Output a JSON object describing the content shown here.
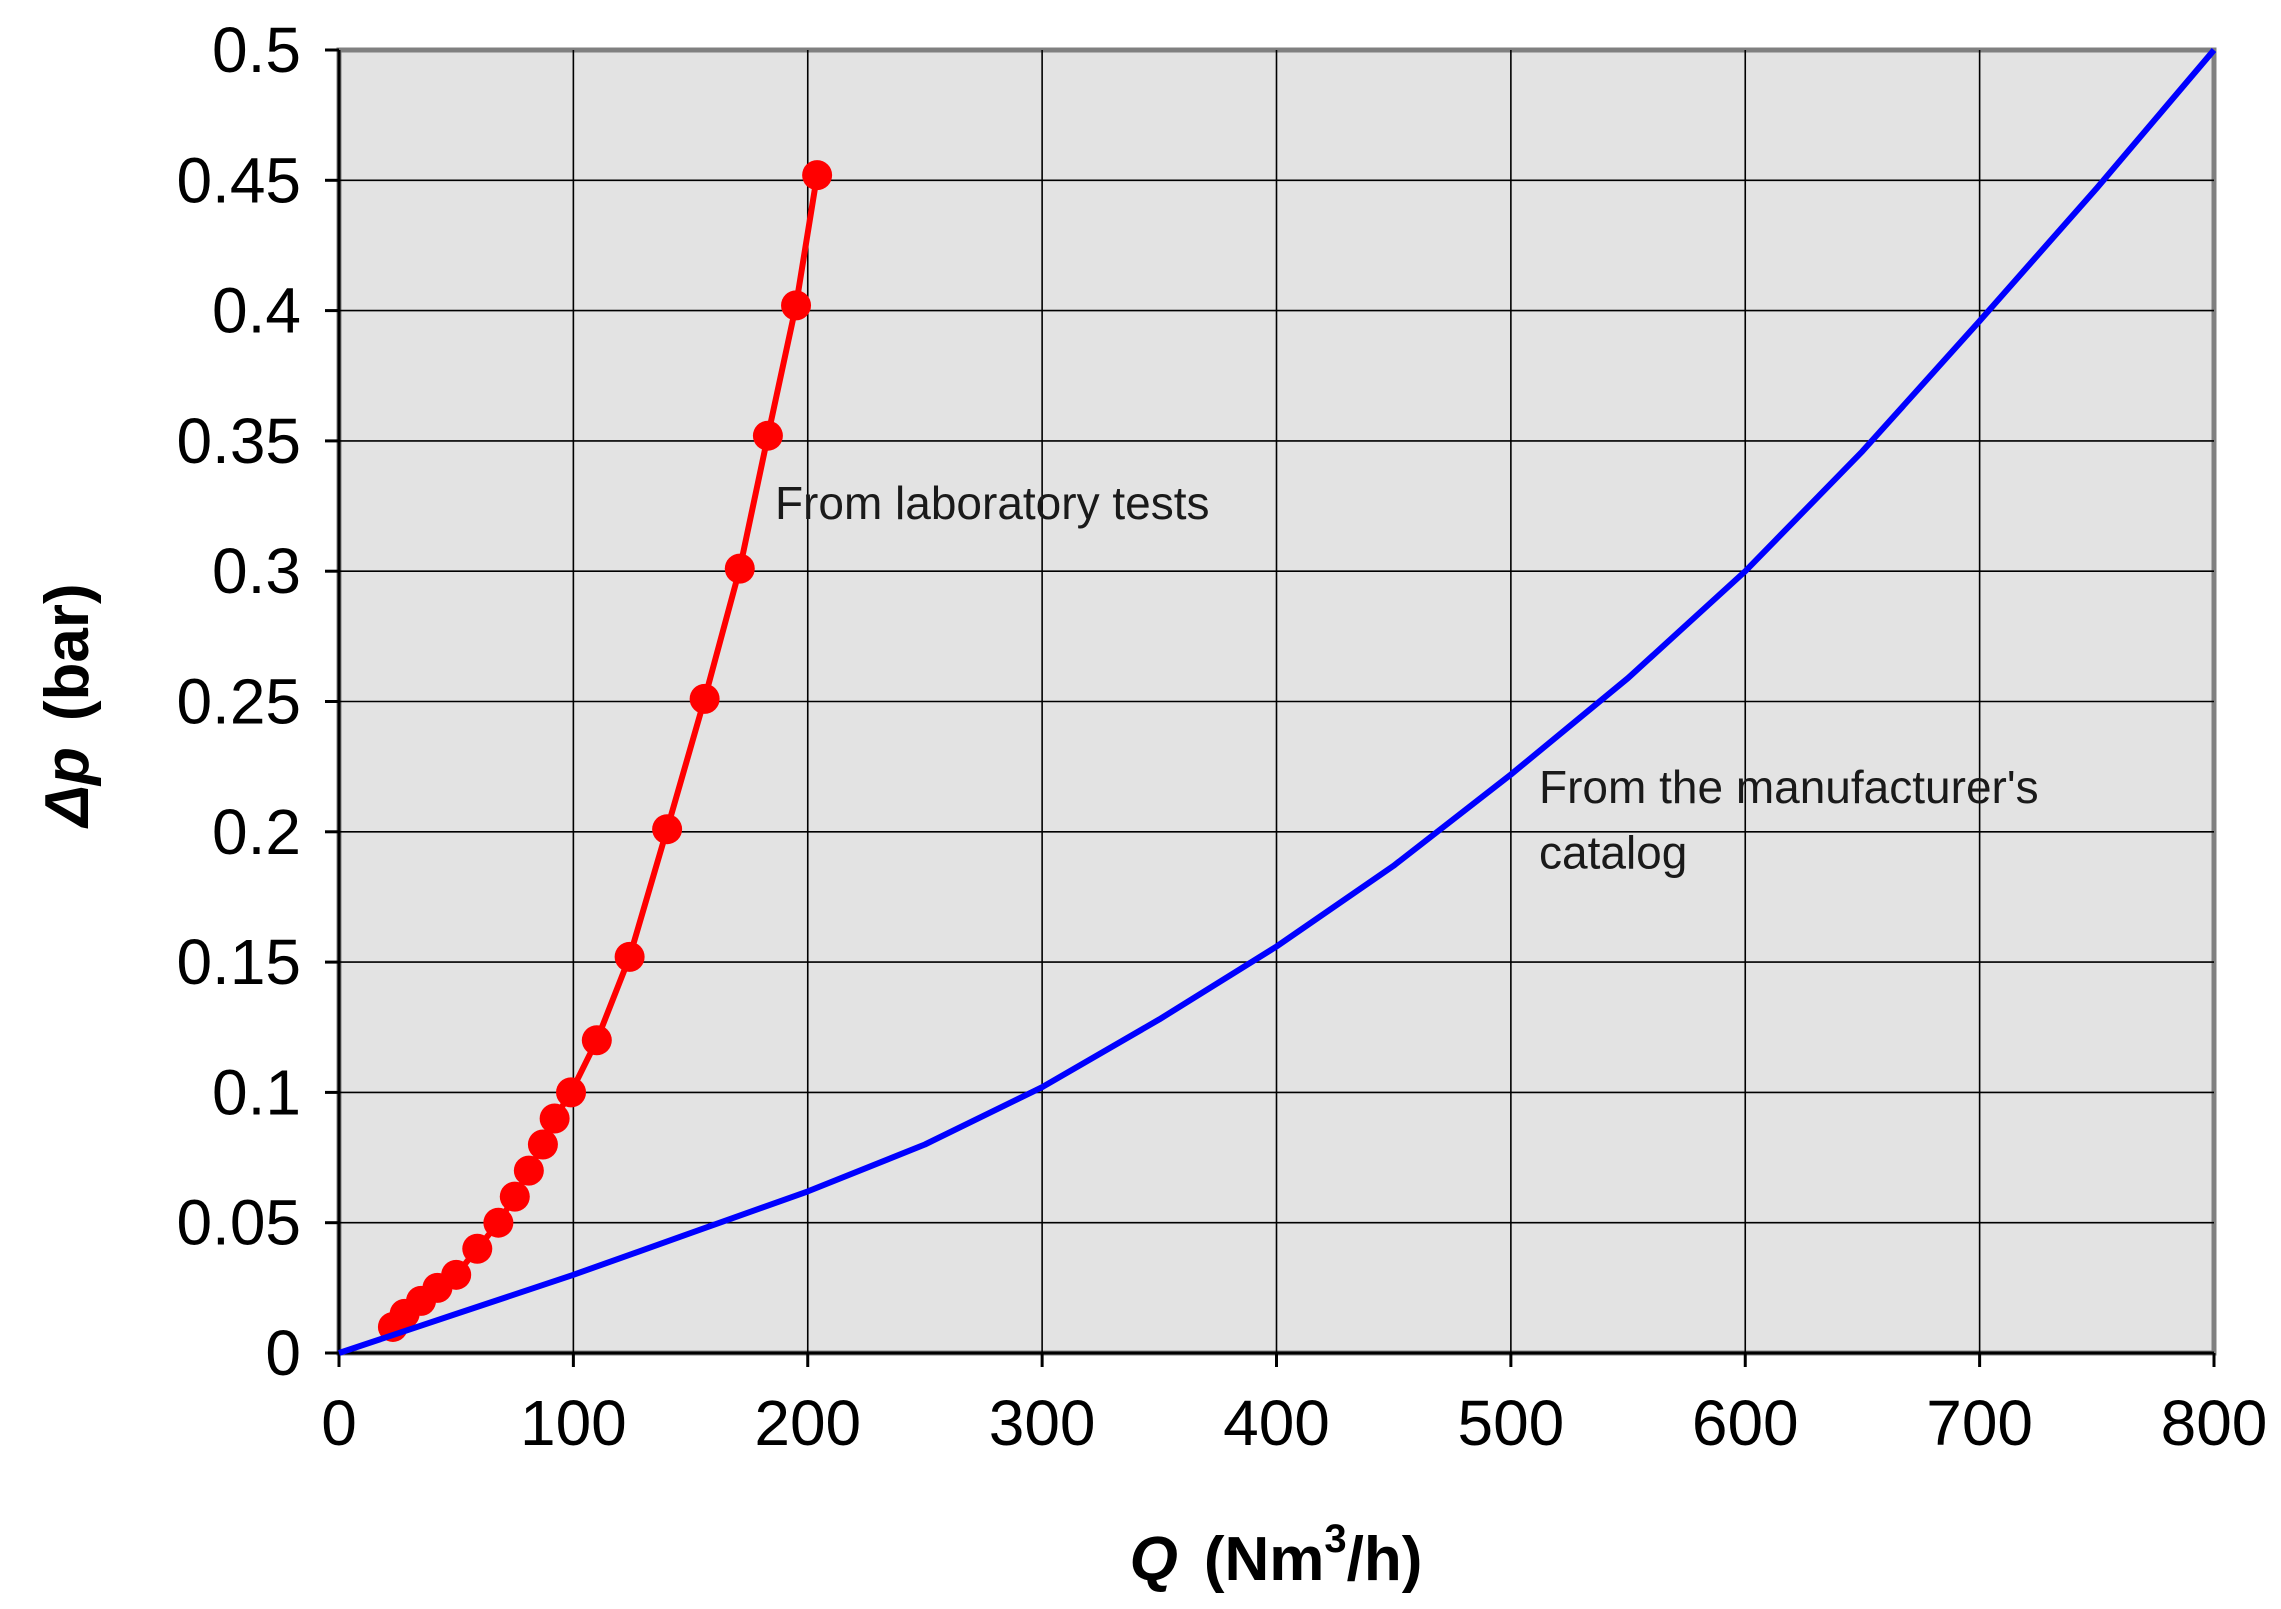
{
  "chart_data": {
    "type": "line",
    "title": "",
    "xlabel": {
      "symbol": "Q",
      "unit_before": "(Nm",
      "unit_sup": "3",
      "unit_after": "/h)"
    },
    "ylabel": {
      "symbol": "Δp",
      "unit": "(bar)"
    },
    "xlim": [
      0,
      800
    ],
    "ylim": [
      0,
      0.5
    ],
    "xticks": [
      0,
      100,
      200,
      300,
      400,
      500,
      600,
      700,
      800
    ],
    "yticks": [
      0,
      0.05,
      0.1,
      0.15,
      0.2,
      0.25,
      0.3,
      0.35,
      0.4,
      0.45,
      0.5
    ],
    "xtick_labels": [
      "0",
      "100",
      "200",
      "300",
      "400",
      "500",
      "600",
      "700",
      "800"
    ],
    "ytick_labels": [
      "0",
      "0.05",
      "0.1",
      "0.15",
      "0.2",
      "0.25",
      "0.3",
      "0.35",
      "0.4",
      "0.45",
      "0.5"
    ],
    "grid": true,
    "series": [
      {
        "name": "From laboratory tests",
        "color": "#ff0000",
        "marker": "circle",
        "x": [
          23,
          28,
          35,
          42,
          50,
          59,
          68,
          75,
          81,
          87,
          92,
          99,
          110,
          124,
          140,
          156,
          171,
          183,
          195,
          204
        ],
        "y": [
          0.01,
          0.015,
          0.02,
          0.025,
          0.03,
          0.04,
          0.05,
          0.06,
          0.07,
          0.08,
          0.09,
          0.1,
          0.12,
          0.152,
          0.201,
          0.251,
          0.301,
          0.352,
          0.402,
          0.452
        ]
      },
      {
        "name": "From the manufacturer's catalog",
        "color": "#0000ff",
        "marker": "none",
        "x": [
          0,
          50,
          100,
          150,
          200,
          250,
          300,
          350,
          400,
          450,
          500,
          550,
          600,
          650,
          700,
          750,
          800
        ],
        "y": [
          0,
          0.015,
          0.03,
          0.046,
          0.062,
          0.08,
          0.102,
          0.128,
          0.156,
          0.187,
          0.222,
          0.259,
          0.3,
          0.346,
          0.396,
          0.447,
          0.5
        ]
      }
    ],
    "annotations": [
      {
        "text": "From laboratory tests",
        "x": 186,
        "y": 0.32
      },
      {
        "text": "From the manufacturer's",
        "x": 512,
        "y": 0.211
      },
      {
        "text": "catalog",
        "x": 512,
        "y": 0.186
      }
    ]
  }
}
